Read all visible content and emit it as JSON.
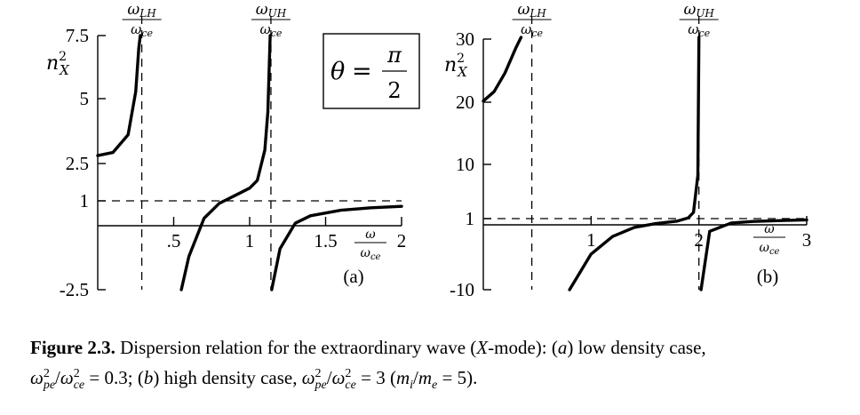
{
  "chart_data": [
    {
      "type": "line",
      "panel_label": "(a)",
      "annotation": "θ = π/2",
      "ylabel": "n_X^2",
      "xlabel": "ω/ω_ce",
      "xlim": [
        0,
        2
      ],
      "ylim": [
        -2.5,
        7.5
      ],
      "xticks": [
        ".5",
        "1",
        "1.5",
        "2"
      ],
      "yticks": [
        "7.5",
        "5",
        "2.5",
        "1",
        "-2.5"
      ],
      "resonance_labels": [
        "ω_LH/ω_ce",
        "ω_UH/ω_ce"
      ],
      "omega_pe2_over_omega_ce2": 0.3,
      "asymptotes": {
        "x_LH": 0.29,
        "x_UH": 1.14,
        "y_unity": 1
      },
      "series": [
        {
          "branch": "low",
          "x": [
            0,
            0.1,
            0.2,
            0.25,
            0.27,
            0.28
          ],
          "y": [
            2.78,
            2.9,
            3.6,
            5.3,
            7.0,
            7.5
          ]
        },
        {
          "branch": "middle",
          "x": [
            0.55,
            0.6,
            0.7,
            0.8,
            0.9,
            1.0,
            1.05,
            1.1,
            1.12,
            1.135
          ],
          "y": [
            -2.5,
            -1.2,
            0.3,
            0.9,
            1.2,
            1.5,
            1.8,
            3.0,
            4.5,
            7.5
          ]
        },
        {
          "branch": "high",
          "x": [
            1.145,
            1.2,
            1.3,
            1.4,
            1.6,
            1.8,
            2.0
          ],
          "y": [
            -2.5,
            -0.9,
            0.1,
            0.4,
            0.62,
            0.72,
            0.78
          ]
        }
      ]
    },
    {
      "type": "line",
      "panel_label": "(b)",
      "ylabel": "n_X^2",
      "xlabel": "ω/ω_ce",
      "xlim": [
        0,
        3
      ],
      "ylim": [
        -10,
        30
      ],
      "xticks": [
        "1",
        "2",
        "3"
      ],
      "yticks": [
        "30",
        "20",
        "10",
        "1",
        "-10"
      ],
      "resonance_labels": [
        "ω_LH/ω_ce",
        "ω_UH/ω_ce"
      ],
      "omega_pe2_over_omega_ce2": 3,
      "mass_ratio": 5,
      "asymptotes": {
        "x_LH": 0.45,
        "x_UH": 2.0,
        "y_unity": 1
      },
      "series": [
        {
          "branch": "low",
          "x": [
            0,
            0.1,
            0.2,
            0.3,
            0.35
          ],
          "y": [
            20,
            21.5,
            24.5,
            28.5,
            31
          ]
        },
        {
          "branch": "middle",
          "x": [
            0.8,
            1.0,
            1.2,
            1.4,
            1.6,
            1.8,
            1.9,
            1.95,
            1.99,
            2.0
          ],
          "y": [
            -10,
            -4.5,
            -1.8,
            -0.4,
            0.2,
            0.6,
            1.1,
            2,
            8,
            31
          ]
        },
        {
          "branch": "high",
          "x": [
            2.02,
            2.1,
            2.3,
            2.5,
            2.8,
            3.0
          ],
          "y": [
            -10,
            -1,
            0.3,
            0.55,
            0.7,
            0.8
          ]
        }
      ]
    }
  ],
  "caption": {
    "label": "Figure 2.3.",
    "text": "Dispersion relation for the extraordinary wave (X-mode): (a) low density case, ω²pe/ω²ce = 0.3; (b) high density case, ω²pe/ω²ce = 3 (mi/me = 5)."
  },
  "style": {
    "ink": "#000000",
    "background": "#ffffff"
  }
}
